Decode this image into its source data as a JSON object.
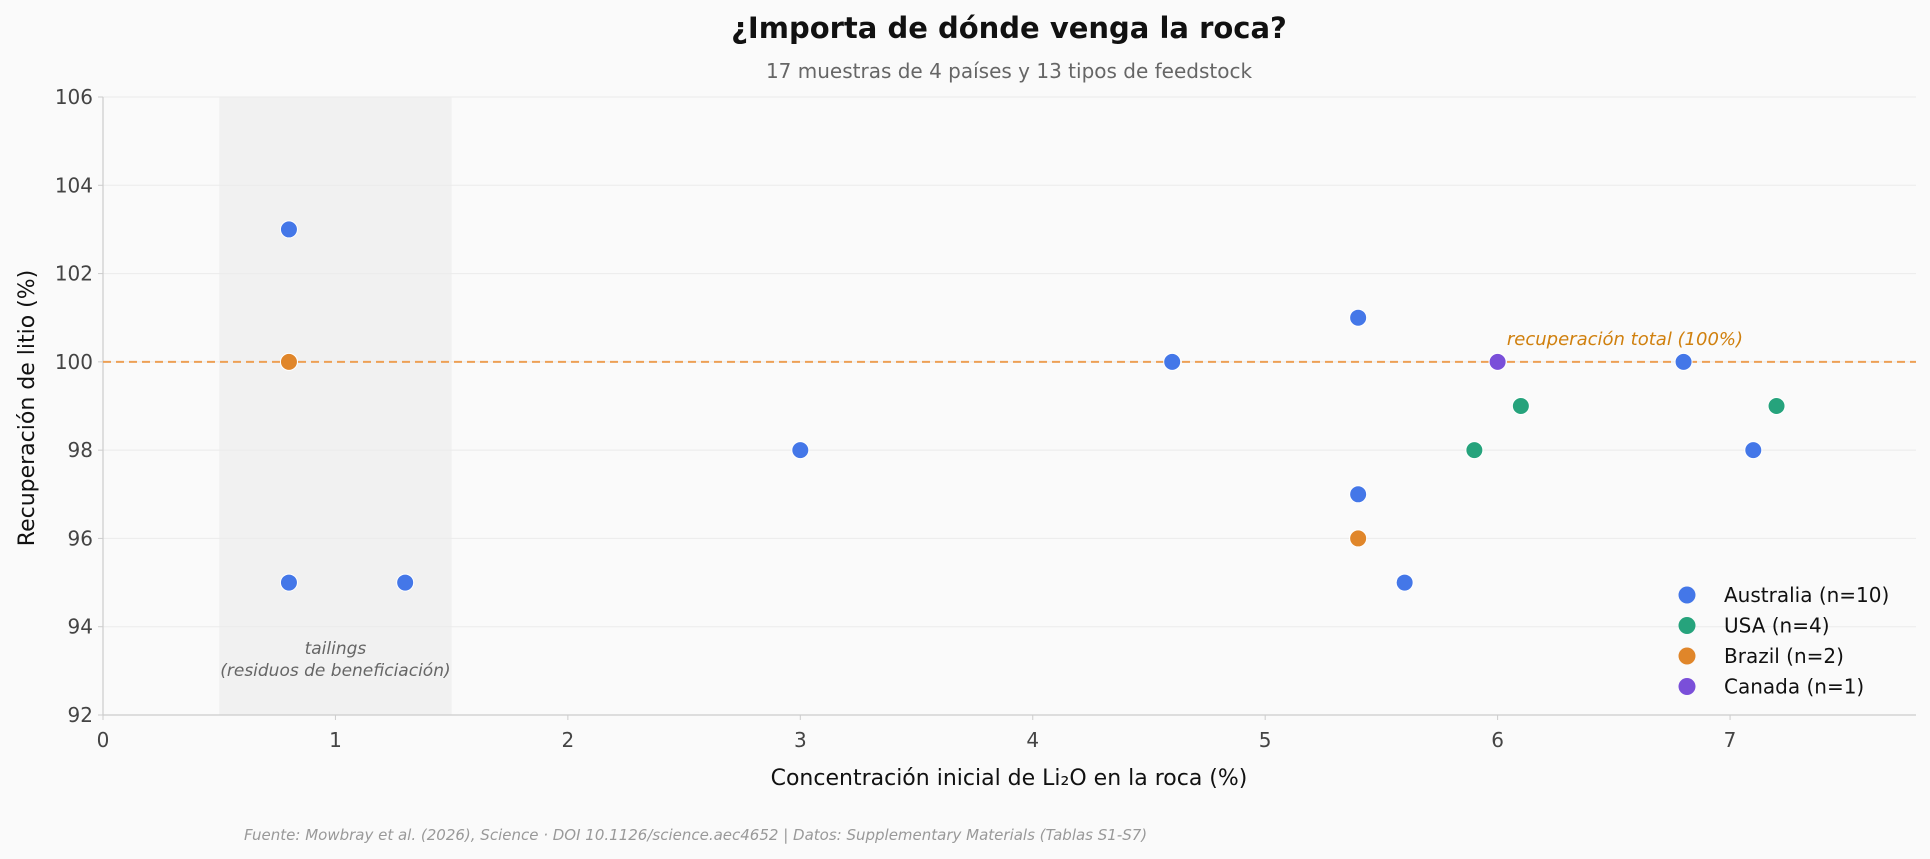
{
  "chart_data": {
    "type": "scatter",
    "title": "¿Importa de dónde venga la roca?",
    "subtitle": "17 muestras de 4 países y 13 tipos de feedstock",
    "xlabel": "Concentración inicial de Li₂O en la roca (%)",
    "ylabel": "Recuperación de litio (%)",
    "xlim": [
      0,
      7.8
    ],
    "ylim": [
      92,
      106
    ],
    "xticks": [
      0,
      1,
      2,
      3,
      4,
      5,
      6,
      7
    ],
    "yticks": [
      92,
      94,
      96,
      98,
      100,
      102,
      104,
      106
    ],
    "grid": "horizontal",
    "legend_position": "bottom-right",
    "series": [
      {
        "name": "Australia (n=10)",
        "color": "#4477e8",
        "points": [
          [
            0.8,
            103
          ],
          [
            0.8,
            95
          ],
          [
            1.3,
            95
          ],
          [
            3.0,
            98
          ],
          [
            4.6,
            100
          ],
          [
            5.4,
            101
          ],
          [
            5.4,
            97
          ],
          [
            5.6,
            95
          ],
          [
            6.8,
            100
          ],
          [
            7.1,
            98
          ]
        ]
      },
      {
        "name": "USA (n=4)",
        "color": "#26a37c",
        "points": [
          [
            5.9,
            98
          ],
          [
            6.1,
            99
          ],
          [
            7.2,
            99
          ],
          [
            6.0,
            100
          ]
        ]
      },
      {
        "name": "Brazil (n=2)",
        "color": "#e0862a",
        "points": [
          [
            0.8,
            100
          ],
          [
            5.4,
            96
          ]
        ]
      },
      {
        "name": "Canada (n=1)",
        "color": "#7a4fd9",
        "points": [
          [
            6.0,
            100
          ]
        ]
      }
    ],
    "reference_line": {
      "y": 100,
      "color": "#eda055",
      "label": "recuperación total (100%)",
      "label_color": "#d0800e",
      "label_x": 6.04
    },
    "shaded_band": {
      "x": [
        0.5,
        1.5
      ],
      "color": "#f1f1f1",
      "label_line1": "tailings",
      "label_line2": "(residuos de beneficiación)"
    },
    "source": "Fuente: Mowbray et al. (2026), Science · DOI 10.1126/science.aec4652 | Datos: Supplementary Materials (Tablas S1-S7)"
  }
}
